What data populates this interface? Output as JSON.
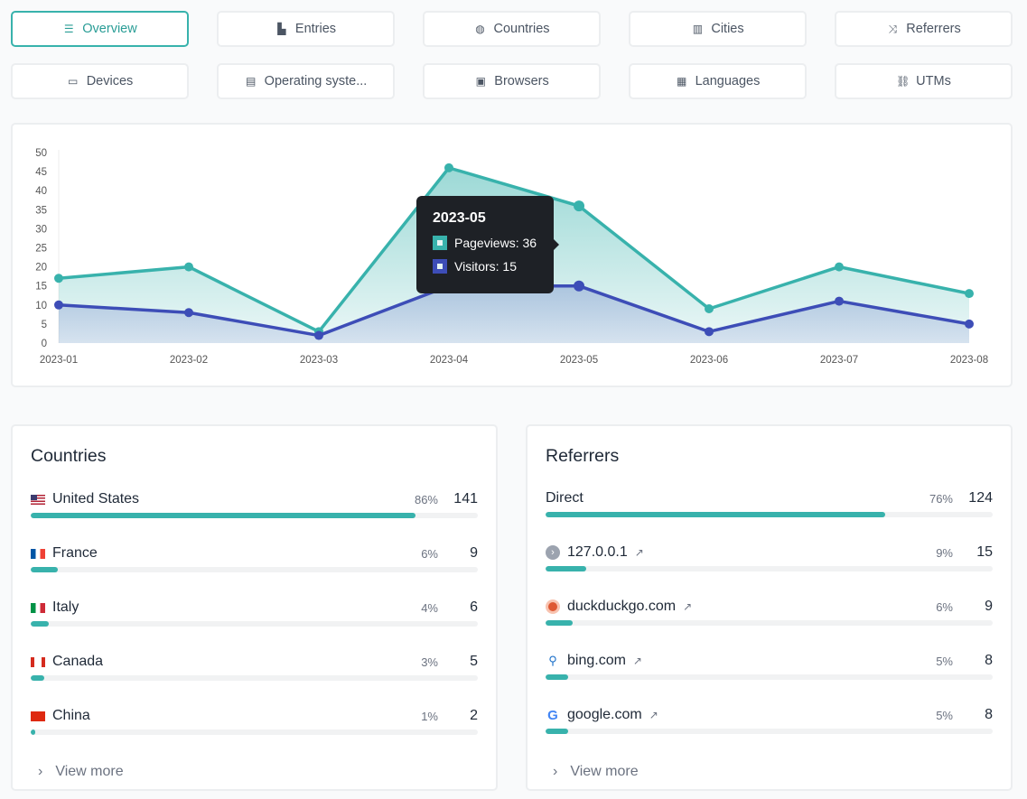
{
  "tabs": [
    {
      "label": "Overview",
      "icon": "list-icon",
      "active": true
    },
    {
      "label": "Entries",
      "icon": "chart-icon"
    },
    {
      "label": "Countries",
      "icon": "globe-icon"
    },
    {
      "label": "Cities",
      "icon": "buildings-icon"
    },
    {
      "label": "Referrers",
      "icon": "shuffle-icon"
    },
    {
      "label": "Devices",
      "icon": "laptop-icon"
    },
    {
      "label": "Operating syste...",
      "icon": "server-icon"
    },
    {
      "label": "Browsers",
      "icon": "browser-icon"
    },
    {
      "label": "Languages",
      "icon": "language-icon"
    },
    {
      "label": "UTMs",
      "icon": "link-icon"
    }
  ],
  "colors": {
    "pageviews": "#38b2ac",
    "visitors": "#3d4db7"
  },
  "chart_data": {
    "type": "area",
    "x": [
      "2023-01",
      "2023-02",
      "2023-03",
      "2023-04",
      "2023-05",
      "2023-06",
      "2023-07",
      "2023-08"
    ],
    "series": [
      {
        "name": "Pageviews",
        "values": [
          17,
          20,
          3,
          46,
          36,
          9,
          20,
          13
        ]
      },
      {
        "name": "Visitors",
        "values": [
          10,
          8,
          2,
          15,
          15,
          3,
          11,
          5
        ]
      }
    ],
    "ylim": [
      0,
      50
    ],
    "yticks": [
      0,
      5,
      10,
      15,
      20,
      25,
      30,
      35,
      40,
      45,
      50
    ],
    "tooltip": {
      "title": "2023-05",
      "pageviews": "Pageviews: 36",
      "visitors": "Visitors: 15"
    }
  },
  "countries": {
    "title": "Countries",
    "items": [
      {
        "name": "United States",
        "pct": "86%",
        "count": "141",
        "fill": 86,
        "flag": "us"
      },
      {
        "name": "France",
        "pct": "6%",
        "count": "9",
        "fill": 6,
        "flag": "fr"
      },
      {
        "name": "Italy",
        "pct": "4%",
        "count": "6",
        "fill": 4,
        "flag": "it"
      },
      {
        "name": "Canada",
        "pct": "3%",
        "count": "5",
        "fill": 3,
        "flag": "ca"
      },
      {
        "name": "China",
        "pct": "1%",
        "count": "2",
        "fill": 1,
        "flag": "cn"
      }
    ],
    "view_more": "View more"
  },
  "referrers": {
    "title": "Referrers",
    "items": [
      {
        "name": "Direct",
        "pct": "76%",
        "count": "124",
        "fill": 76
      },
      {
        "name": "127.0.0.1",
        "pct": "9%",
        "count": "15",
        "fill": 9,
        "icon": "localhost-icon"
      },
      {
        "name": "duckduckgo.com",
        "pct": "6%",
        "count": "9",
        "fill": 6,
        "icon": "duckduckgo-icon"
      },
      {
        "name": "bing.com",
        "pct": "5%",
        "count": "8",
        "fill": 5,
        "icon": "bing-search-icon"
      },
      {
        "name": "google.com",
        "pct": "5%",
        "count": "8",
        "fill": 5,
        "icon": "google-icon"
      }
    ],
    "view_more": "View more"
  }
}
